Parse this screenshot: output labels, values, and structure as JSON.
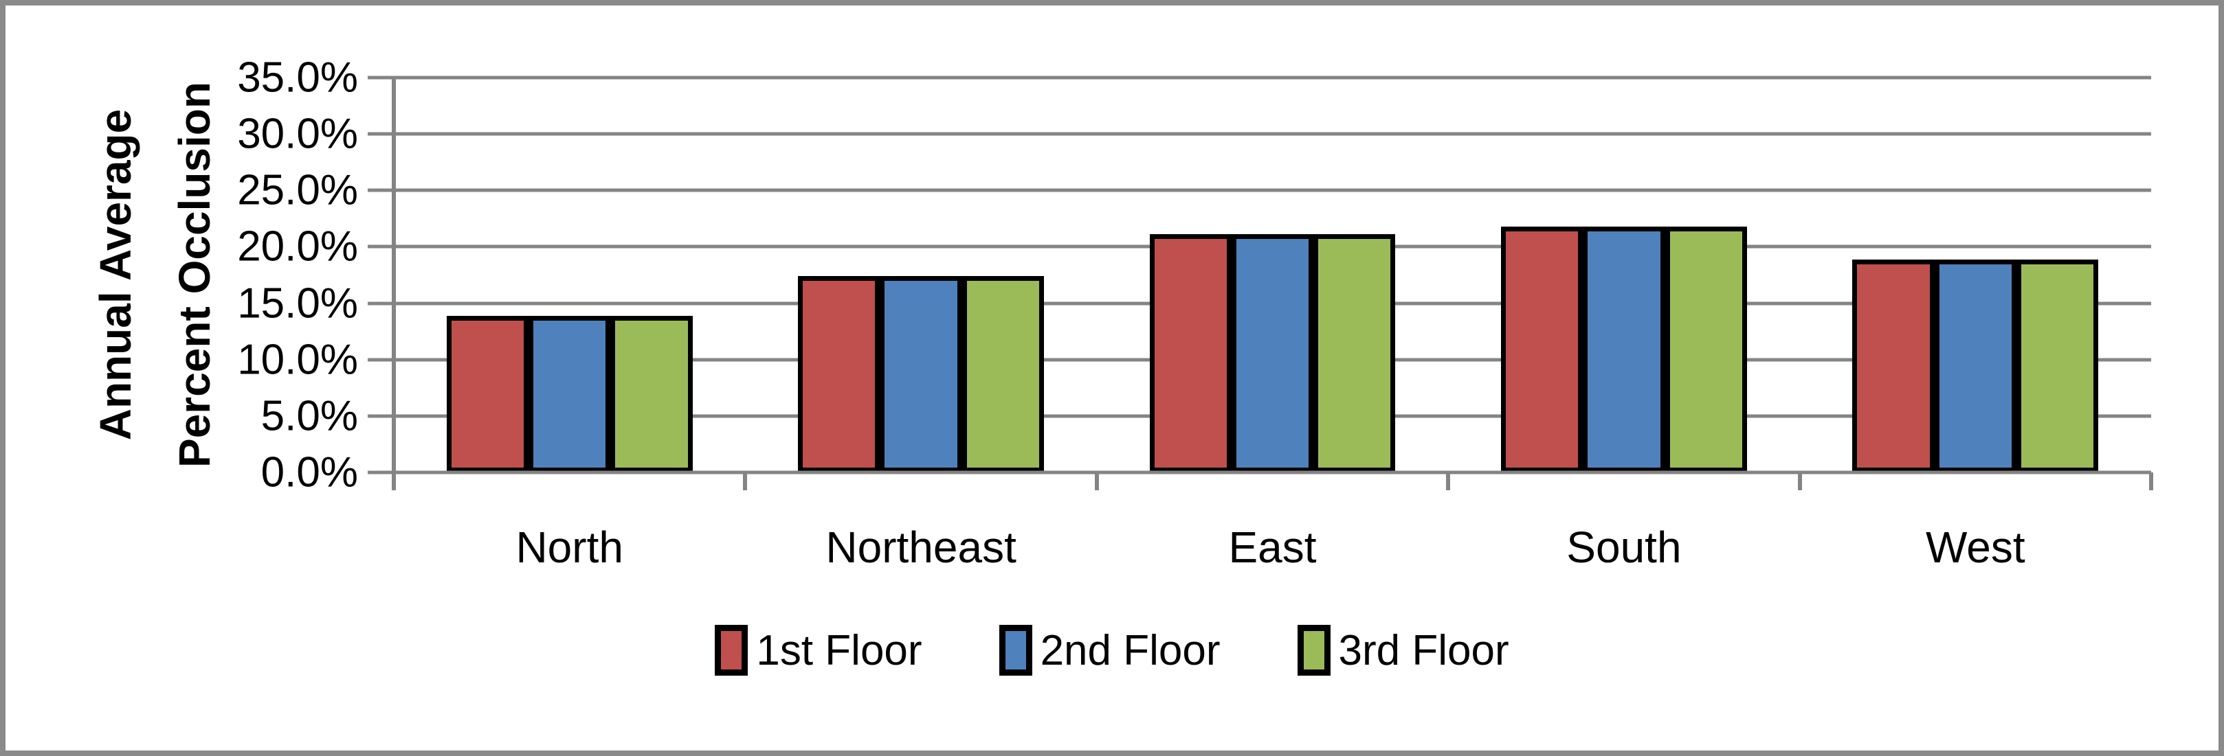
{
  "chart_data": {
    "type": "bar",
    "categories": [
      "North",
      "Northeast",
      "East",
      "South",
      "West"
    ],
    "series": [
      {
        "name": "1st Floor",
        "color": "#C0504D",
        "values": [
          13.9,
          17.4,
          21.1,
          21.8,
          18.9
        ]
      },
      {
        "name": "2nd Floor",
        "color": "#4F81BD",
        "values": [
          13.9,
          17.4,
          21.1,
          21.8,
          18.9
        ]
      },
      {
        "name": "3rd Floor",
        "color": "#9BBB59",
        "values": [
          13.9,
          17.4,
          21.1,
          21.8,
          18.9
        ]
      }
    ],
    "title": "",
    "xlabel": "",
    "ylabel": "Annual Average\nPercent Occlusion",
    "ytick_labels": [
      "35.0%",
      "30.0%",
      "25.0%",
      "20.0%",
      "15.0%",
      "10.0%",
      "5.0%",
      "0.0%"
    ],
    "ylim": [
      0,
      35
    ],
    "grid": true,
    "legend_position": "bottom",
    "colors": {
      "grid": "#848484",
      "axis": "#848484",
      "frame": "#8A8A8A",
      "bar_border": "#000000",
      "text": "#000000"
    }
  }
}
